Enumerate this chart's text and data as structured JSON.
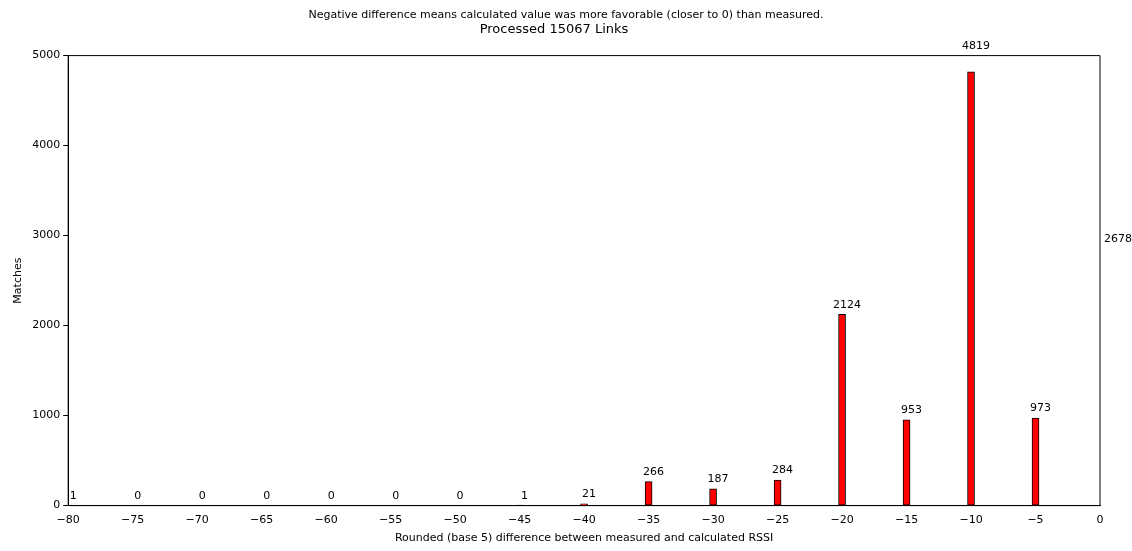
{
  "chart_data": {
    "type": "bar",
    "title": "Processed 15067 Links",
    "xlabel": "Rounded (base 5) difference between measured and calculated RSSI",
    "ylabel": "Matches",
    "annotations": [
      "Negative difference means calculated value was more favorable (closer to 0) than measured.",
      "2678"
    ],
    "x": [
      -80,
      -75,
      -70,
      -65,
      -60,
      -55,
      -50,
      -45,
      -40,
      -35,
      -30,
      -25,
      -20,
      -15,
      -10,
      -5
    ],
    "values": [
      1,
      0,
      0,
      0,
      0,
      0,
      0,
      1,
      21,
      266,
      187,
      284,
      2124,
      953,
      4819,
      973
    ],
    "color": "#ff0000",
    "data_labels": true,
    "grid": false,
    "legend": false,
    "xlim": [
      -80,
      0
    ],
    "xticks": [
      {
        "value": -80,
        "label": "−80"
      },
      {
        "value": -75,
        "label": "−75"
      },
      {
        "value": -70,
        "label": "−70"
      },
      {
        "value": -65,
        "label": "−65"
      },
      {
        "value": -60,
        "label": "−60"
      },
      {
        "value": -55,
        "label": "−55"
      },
      {
        "value": -50,
        "label": "−50"
      },
      {
        "value": -45,
        "label": "−45"
      },
      {
        "value": -40,
        "label": "−40"
      },
      {
        "value": -35,
        "label": "−35"
      },
      {
        "value": -30,
        "label": "−30"
      },
      {
        "value": -25,
        "label": "−25"
      },
      {
        "value": -20,
        "label": "−20"
      },
      {
        "value": -15,
        "label": "−15"
      },
      {
        "value": -10,
        "label": "−10"
      },
      {
        "value": -5,
        "label": "−5"
      },
      0
    ],
    "ylim": [
      0,
      5000
    ],
    "yticks": [
      0,
      1000,
      2000,
      3000,
      4000,
      5000
    ]
  }
}
